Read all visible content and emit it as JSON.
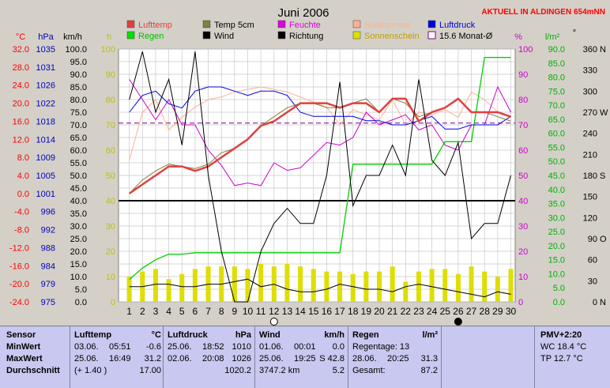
{
  "title": "Juni 2006",
  "station": "AKTUELL IN ALDINGEN 654mNN",
  "axis_units": {
    "temp": "°C",
    "press": "hPa",
    "wind": "km/h",
    "sun": "h",
    "hum": "%",
    "rain": "l/m²",
    "dir": "°"
  },
  "axes": {
    "temp": {
      "min": -24,
      "max": 32,
      "step": 4
    },
    "press": {
      "min": 975,
      "max": 1035
    },
    "wind": {
      "min": 0,
      "max": 100,
      "step": 5
    },
    "sun": {
      "min": 0,
      "max": 100,
      "step": 10
    },
    "hum": {
      "min": 0,
      "max": 100,
      "step": 10
    },
    "rain": {
      "min": 0,
      "max": 90,
      "step": 5
    },
    "dir": {
      "min": 0,
      "max": 360,
      "step": 30
    }
  },
  "dir_labels": {
    "360": "N",
    "270": "W",
    "180": "S",
    "90": "O",
    "0": "N"
  },
  "legend": [
    {
      "label": "Lufttemp",
      "color": "#e04040",
      "style": "box"
    },
    {
      "label": "Temp 5cm",
      "color": "#808040",
      "style": "box"
    },
    {
      "label": "Feuchte",
      "color": "#e000e0",
      "style": "box"
    },
    {
      "label": "Solarsensor",
      "color": "#ffb090",
      "style": "box"
    },
    {
      "label": "Luftdruck",
      "color": "#0000e0",
      "style": "box"
    },
    {
      "label": "Regen",
      "color": "#00e000",
      "style": "box"
    },
    {
      "label": "Wind",
      "color": "#000000",
      "style": "box"
    },
    {
      "label": "Richtung",
      "color": "#000000",
      "style": "box"
    },
    {
      "label": "Sonnenschein",
      "color": "#e0e000",
      "style": "box"
    },
    {
      "label": "15.6 Monat-Ø",
      "color": "#800080",
      "style": "outline"
    }
  ],
  "colors": {
    "plot_bg": "#ffffff",
    "grid": "#c8c8c8",
    "temp_axis": "#ff0000",
    "press_axis": "#0000c0",
    "sun_axis": "#c0c000",
    "hum_axis": "#d000d0",
    "rain_axis": "#00b000"
  },
  "chart_data": {
    "type": "line",
    "days": [
      1,
      2,
      3,
      4,
      5,
      6,
      7,
      8,
      9,
      10,
      11,
      12,
      13,
      14,
      15,
      16,
      17,
      18,
      19,
      20,
      21,
      22,
      23,
      24,
      25,
      26,
      27,
      28,
      29,
      30
    ],
    "series": [
      {
        "name": "Lufttemp",
        "axis": "temp",
        "values": [
          0,
          2,
          4,
          6,
          6,
          5,
          6,
          8,
          10,
          12,
          15,
          16,
          18,
          20,
          20,
          20,
          19,
          20,
          20,
          18,
          21,
          21,
          16,
          18,
          19,
          21,
          18,
          18,
          18,
          17
        ]
      },
      {
        "name": "Temp 5cm",
        "axis": "temp",
        "values": [
          0,
          3,
          5,
          6.5,
          6,
          5.5,
          6.5,
          9,
          10,
          12,
          15,
          17,
          19,
          20,
          20,
          19,
          19,
          20,
          21,
          18,
          21,
          20,
          17,
          18,
          19,
          21,
          18,
          18,
          17,
          16
        ]
      },
      {
        "name": "Feuchte",
        "axis": "hum",
        "values": [
          88,
          80,
          72,
          80,
          70,
          70,
          60,
          54,
          46,
          47,
          46,
          55,
          52,
          53,
          58,
          63,
          62,
          65,
          75,
          70,
          72,
          74,
          68,
          70,
          62,
          60,
          70,
          70,
          85,
          75
        ]
      },
      {
        "name": "Solarsensor",
        "axis": "hum",
        "values": [
          56,
          75,
          80,
          68,
          73,
          77,
          80,
          81,
          83,
          84,
          85,
          84,
          83,
          81,
          79,
          77,
          70,
          76,
          74,
          72,
          80,
          70,
          75,
          74,
          76,
          73,
          83,
          80,
          75,
          73
        ]
      },
      {
        "name": "Luftdruck",
        "axis": "press",
        "values": [
          1020,
          1024,
          1025,
          1022,
          1021,
          1025,
          1026,
          1026,
          1025,
          1024,
          1025,
          1025,
          1024,
          1020,
          1019,
          1019,
          1019,
          1019,
          1018,
          1018,
          1017,
          1017,
          1018,
          1019,
          1016,
          1016,
          1017,
          1017,
          1017,
          1019
        ]
      },
      {
        "name": "Wind",
        "axis": "wind",
        "values": [
          80,
          99,
          75,
          88,
          62,
          99,
          50,
          20,
          0,
          0,
          20,
          31,
          37,
          31,
          31,
          50,
          87,
          38,
          50,
          50,
          62,
          50,
          88,
          56,
          50,
          63,
          25,
          31,
          31,
          50
        ]
      },
      {
        "name": "Regen",
        "axis": "rain",
        "values": [
          8,
          12,
          15,
          17,
          17,
          17.5,
          17.5,
          17.5,
          17.5,
          17.5,
          17.5,
          17.5,
          17.5,
          17.5,
          17.5,
          17.5,
          17.5,
          49,
          49,
          49,
          49,
          49,
          49,
          49,
          57,
          57,
          57,
          87,
          87,
          87
        ]
      },
      {
        "name": "Sonnenschein",
        "axis": "sun",
        "values": [
          10,
          12,
          13,
          9,
          11,
          13,
          14,
          14,
          14,
          13,
          15,
          14,
          15,
          14,
          13,
          12,
          12,
          11,
          12,
          12,
          14,
          8,
          12,
          13,
          13,
          11,
          14,
          12,
          10,
          13
        ]
      },
      {
        "name": "Richtung",
        "axis": "wind",
        "values": [
          6,
          6,
          7,
          7,
          6,
          6,
          7,
          7,
          8,
          9,
          6,
          7,
          5,
          4,
          4,
          5,
          7,
          6,
          5,
          5,
          4,
          6,
          7,
          6,
          5,
          4,
          3,
          2,
          4,
          3
        ]
      }
    ],
    "reference_lines": [
      {
        "name": "15.6 Monat-Ø",
        "axis": "temp",
        "value": 15.6,
        "color": "#800080",
        "dash": "dashed"
      },
      {
        "name": "",
        "axis": "wind",
        "value": 40,
        "color": "#000000",
        "dash": "solid"
      }
    ],
    "moon_markers": [
      {
        "day": 12,
        "phase": "full"
      },
      {
        "day": 26,
        "phase": "new"
      }
    ]
  },
  "stats": {
    "sensor": {
      "title": "Sensor",
      "rows": [
        "MinWert",
        "MaxWert",
        "Durchschnitt"
      ]
    },
    "lufttemp": {
      "title": "Lufttemp",
      "unit": "°C",
      "rows": [
        [
          "03.06.",
          "05:51",
          "-0.6"
        ],
        [
          "25.06.",
          "16:49",
          "31.2"
        ],
        [
          "(+ 1.40 )",
          "",
          "17.00"
        ]
      ]
    },
    "luftdruck": {
      "title": "Luftdruck",
      "unit": "hPa",
      "rows": [
        [
          "25.06.",
          "18:52",
          "1010"
        ],
        [
          "02.06.",
          "20:08",
          "1026"
        ],
        [
          "",
          "",
          "1020.2"
        ]
      ]
    },
    "wind": {
      "title": "Wind",
      "unit": "km/h",
      "rows": [
        [
          "01.06.",
          "00:01",
          "0.0"
        ],
        [
          "25.06.",
          "19:25",
          "S 42.8"
        ],
        [
          "3747.2 km",
          "",
          "5.2"
        ]
      ]
    },
    "regen": {
      "title": "Regen",
      "unit": "l/m²",
      "rows": [
        [
          "Regentage: 13",
          "",
          ""
        ],
        [
          "28.06.",
          "20:25",
          "31.3"
        ],
        [
          "Gesamt:",
          "",
          "87.2"
        ]
      ]
    },
    "pmv": {
      "title": "PMV+2:20",
      "rows": [
        "WC 18.4 °C",
        "TP 12.7 °C"
      ]
    }
  }
}
